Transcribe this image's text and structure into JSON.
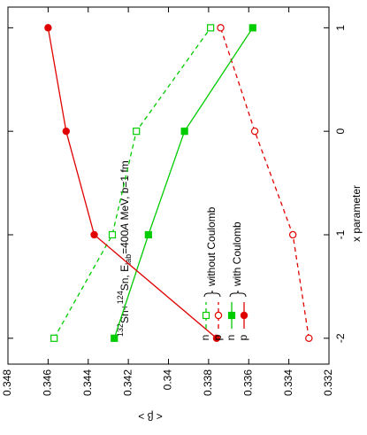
{
  "chart_data": {
    "type": "line",
    "title_parts": [
      "132",
      "Sn+",
      "124",
      "Sn, E",
      "lab",
      "=400",
      "A",
      " MeV, b=1 fm"
    ],
    "x_label": "x parameter",
    "y_label": "< β >",
    "x": [
      -2,
      -1,
      0,
      1
    ],
    "xlim": [
      -2.25,
      1.2
    ],
    "xticks": [
      -2,
      -1,
      0,
      1
    ],
    "ylim": [
      0.332,
      0.348
    ],
    "yticks": [
      0.332,
      0.334,
      0.336,
      0.338,
      0.34,
      0.342,
      0.344,
      0.346,
      0.348
    ],
    "legend_groups": [
      "without Coulomb",
      "with Coulomb"
    ],
    "series": [
      {
        "name": "n",
        "color": "#00cc00",
        "dash": true,
        "marker": "square",
        "filled": false,
        "values": [
          0.3457,
          0.3428,
          0.3416,
          0.3379
        ]
      },
      {
        "name": "p",
        "color": "#e00000",
        "dash": true,
        "marker": "circle",
        "filled": false,
        "values": [
          0.333,
          0.3338,
          0.3357,
          0.3374
        ]
      },
      {
        "name": "n",
        "color": "#00cc00",
        "dash": false,
        "marker": "square",
        "filled": true,
        "values": [
          0.3427,
          0.341,
          0.3392,
          0.3358
        ]
      },
      {
        "name": "p",
        "color": "#e00000",
        "dash": false,
        "marker": "circle",
        "filled": true,
        "values": [
          0.3376,
          0.3437,
          0.3451,
          0.346
        ]
      }
    ]
  }
}
